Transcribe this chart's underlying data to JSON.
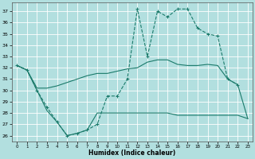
{
  "background_color": "#b2dfdf",
  "line_color": "#1a7a6a",
  "grid_color": "#ffffff",
  "xlabel": "Humidex (Indice chaleur)",
  "xlim": [
    -0.5,
    23.5
  ],
  "ylim": [
    25.5,
    37.8
  ],
  "yticks": [
    26,
    27,
    28,
    29,
    30,
    31,
    32,
    33,
    34,
    35,
    36,
    37
  ],
  "xticks": [
    0,
    1,
    2,
    3,
    4,
    5,
    6,
    7,
    8,
    9,
    10,
    11,
    12,
    13,
    14,
    15,
    16,
    17,
    18,
    19,
    20,
    21,
    22,
    23
  ],
  "line_dashed": {
    "x": [
      0,
      1,
      2,
      3,
      4,
      5,
      6,
      7,
      8,
      9,
      10,
      11,
      12,
      13,
      14,
      15,
      16,
      17,
      18,
      19,
      20,
      21,
      22
    ],
    "y": [
      32.2,
      31.8,
      30.0,
      28.5,
      27.2,
      26.0,
      26.2,
      26.5,
      27.0,
      29.5,
      29.5,
      31.0,
      37.2,
      33.0,
      37.0,
      36.5,
      37.2,
      37.2,
      35.5,
      35.0,
      34.8,
      31.0,
      30.5
    ]
  },
  "line_upper": {
    "x": [
      0,
      1,
      2,
      3,
      4,
      5,
      6,
      7,
      8,
      9,
      10,
      11,
      12,
      13,
      14,
      15,
      16,
      17,
      18,
      19,
      20,
      21,
      22,
      23
    ],
    "y": [
      32.2,
      31.8,
      30.2,
      30.2,
      30.4,
      30.7,
      31.0,
      31.3,
      31.5,
      31.5,
      31.7,
      31.9,
      32.0,
      32.5,
      32.7,
      32.7,
      32.3,
      32.2,
      32.2,
      32.3,
      32.2,
      31.0,
      30.5,
      27.5
    ]
  },
  "line_lower": {
    "x": [
      0,
      1,
      2,
      3,
      4,
      5,
      6,
      7,
      8,
      9,
      10,
      11,
      12,
      13,
      14,
      15,
      16,
      17,
      18,
      19,
      20,
      21,
      22,
      23
    ],
    "y": [
      32.2,
      31.8,
      30.0,
      28.2,
      27.2,
      26.0,
      26.2,
      26.5,
      28.0,
      28.0,
      28.0,
      28.0,
      28.0,
      28.0,
      28.0,
      28.0,
      27.8,
      27.8,
      27.8,
      27.8,
      27.8,
      27.8,
      27.8,
      27.5
    ]
  }
}
